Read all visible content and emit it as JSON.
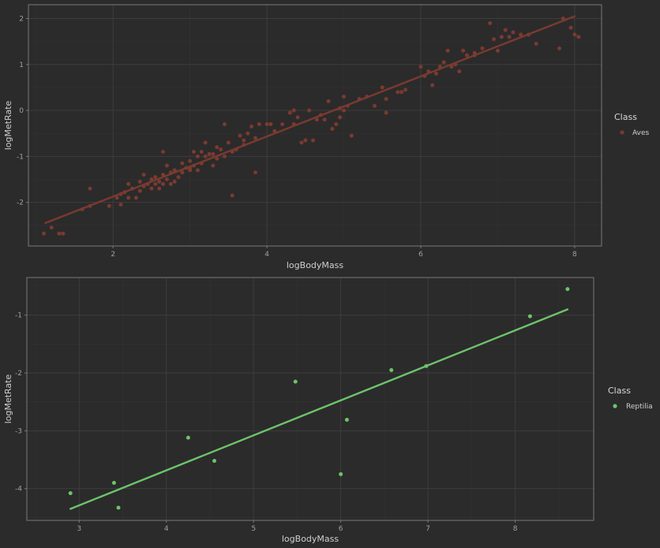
{
  "chart_data": [
    {
      "type": "scatter",
      "xlabel": "logBodyMass",
      "ylabel": "logMetRate",
      "xlim": [
        0.9,
        8.35
      ],
      "ylim": [
        -2.95,
        2.3
      ],
      "xticks": [
        2,
        4,
        6,
        8
      ],
      "yticks": [
        -2,
        -1,
        0,
        1,
        2
      ],
      "legend": {
        "title": "Class",
        "position": "right"
      },
      "grid": true,
      "series": [
        {
          "name": "Aves",
          "color": "#7a3a30",
          "points": [
            [
              1.1,
              -2.68
            ],
            [
              1.2,
              -2.55
            ],
            [
              1.3,
              -2.68
            ],
            [
              1.35,
              -2.68
            ],
            [
              1.6,
              -2.15
            ],
            [
              1.7,
              -1.7
            ],
            [
              1.7,
              -2.08
            ],
            [
              1.95,
              -2.08
            ],
            [
              2.05,
              -1.9
            ],
            [
              2.1,
              -1.82
            ],
            [
              2.1,
              -2.05
            ],
            [
              2.15,
              -1.78
            ],
            [
              2.2,
              -1.6
            ],
            [
              2.25,
              -1.7
            ],
            [
              2.3,
              -1.9
            ],
            [
              2.35,
              -1.75
            ],
            [
              2.35,
              -1.55
            ],
            [
              2.4,
              -1.65
            ],
            [
              2.4,
              -1.4
            ],
            [
              2.45,
              -1.6
            ],
            [
              2.5,
              -1.7
            ],
            [
              2.5,
              -1.5
            ],
            [
              2.55,
              -1.6
            ],
            [
              2.55,
              -1.45
            ],
            [
              2.6,
              -1.7
            ],
            [
              2.6,
              -1.55
            ],
            [
              2.65,
              -1.6
            ],
            [
              2.65,
              -1.4
            ],
            [
              2.7,
              -1.2
            ],
            [
              2.7,
              -1.5
            ],
            [
              2.75,
              -1.35
            ],
            [
              2.75,
              -1.6
            ],
            [
              2.8,
              -1.3
            ],
            [
              2.85,
              -1.45
            ],
            [
              2.9,
              -1.15
            ],
            [
              2.9,
              -1.35
            ],
            [
              2.95,
              -1.25
            ],
            [
              3.0,
              -1.1
            ],
            [
              3.0,
              -1.3
            ],
            [
              3.05,
              -1.2
            ],
            [
              3.1,
              -1.0
            ],
            [
              3.1,
              -1.3
            ],
            [
              3.15,
              -1.15
            ],
            [
              3.2,
              -1.0
            ],
            [
              3.25,
              -0.95
            ],
            [
              3.3,
              -1.2
            ],
            [
              3.35,
              -1.05
            ],
            [
              3.4,
              -0.85
            ],
            [
              3.45,
              -1.0
            ],
            [
              3.5,
              -0.7
            ],
            [
              3.55,
              -0.9
            ],
            [
              3.6,
              -0.85
            ],
            [
              3.65,
              -0.55
            ],
            [
              3.7,
              -0.75
            ],
            [
              3.75,
              -0.5
            ],
            [
              3.8,
              -0.35
            ],
            [
              3.85,
              -0.6
            ],
            [
              3.9,
              -0.3
            ],
            [
              4.0,
              -0.3
            ],
            [
              4.1,
              -0.45
            ],
            [
              4.2,
              -0.3
            ],
            [
              4.3,
              -0.05
            ],
            [
              4.35,
              -0.3
            ],
            [
              4.4,
              -0.15
            ],
            [
              4.5,
              -0.65
            ],
            [
              4.6,
              -0.65
            ],
            [
              4.7,
              -0.1
            ],
            [
              4.75,
              -0.2
            ],
            [
              4.8,
              0.2
            ],
            [
              4.9,
              -0.3
            ],
            [
              4.95,
              -0.15
            ],
            [
              5.0,
              0.3
            ],
            [
              5.05,
              0.1
            ],
            [
              5.1,
              -0.55
            ],
            [
              5.2,
              0.25
            ],
            [
              5.3,
              0.3
            ],
            [
              5.5,
              0.5
            ],
            [
              5.55,
              0.25
            ],
            [
              5.7,
              0.4
            ],
            [
              5.8,
              0.45
            ],
            [
              6.0,
              0.95
            ],
            [
              6.05,
              0.75
            ],
            [
              6.1,
              0.85
            ],
            [
              6.15,
              0.55
            ],
            [
              6.2,
              0.8
            ],
            [
              6.3,
              1.05
            ],
            [
              6.35,
              1.3
            ],
            [
              6.45,
              1.0
            ],
            [
              6.5,
              0.85
            ],
            [
              6.55,
              1.3
            ],
            [
              6.6,
              1.2
            ],
            [
              6.7,
              1.2
            ],
            [
              6.8,
              1.35
            ],
            [
              6.9,
              1.9
            ],
            [
              6.95,
              1.55
            ],
            [
              7.0,
              1.3
            ],
            [
              7.05,
              1.6
            ],
            [
              7.1,
              1.75
            ],
            [
              7.2,
              1.7
            ],
            [
              7.3,
              1.65
            ],
            [
              7.5,
              1.45
            ],
            [
              7.8,
              1.35
            ],
            [
              7.85,
              2.0
            ],
            [
              7.95,
              1.8
            ],
            [
              8.0,
              1.65
            ],
            [
              8.05,
              1.6
            ],
            [
              2.65,
              -0.9
            ],
            [
              3.05,
              -0.9
            ],
            [
              3.2,
              -0.7
            ],
            [
              3.3,
              -0.95
            ],
            [
              3.45,
              -0.3
            ],
            [
              3.55,
              -1.85
            ],
            [
              3.85,
              -1.35
            ],
            [
              4.45,
              -0.7
            ],
            [
              4.85,
              -0.4
            ],
            [
              5.55,
              -0.05
            ],
            [
              5.0,
              0.0
            ],
            [
              6.25,
              0.95
            ],
            [
              2.2,
              -1.9
            ],
            [
              2.8,
              -1.55
            ],
            [
              3.0,
              -1.25
            ],
            [
              3.15,
              -0.9
            ],
            [
              3.35,
              -0.8
            ],
            [
              3.7,
              -0.65
            ],
            [
              4.05,
              -0.3
            ],
            [
              4.35,
              0.0
            ],
            [
              4.55,
              0.0
            ],
            [
              4.65,
              -0.2
            ],
            [
              4.95,
              0.05
            ],
            [
              5.4,
              0.1
            ],
            [
              5.75,
              0.4
            ],
            [
              6.4,
              0.95
            ],
            [
              6.7,
              1.25
            ],
            [
              7.15,
              1.6
            ],
            [
              7.4,
              1.65
            ]
          ],
          "fit": {
            "x1": 1.12,
            "y1": -2.45,
            "x2": 8.0,
            "y2": 2.05
          }
        }
      ]
    },
    {
      "type": "scatter",
      "xlabel": "logBodyMass",
      "ylabel": "logMetRate",
      "xlim": [
        2.4,
        8.9
      ],
      "ylim": [
        -4.55,
        -0.35
      ],
      "xticks": [
        3,
        4,
        5,
        6,
        7,
        8
      ],
      "yticks": [
        -4,
        -3,
        -2,
        -1
      ],
      "legend": {
        "title": "Class",
        "position": "right"
      },
      "grid": true,
      "series": [
        {
          "name": "Reptilia",
          "color": "#6cc46a",
          "points": [
            [
              2.9,
              -4.08
            ],
            [
              3.4,
              -3.9
            ],
            [
              3.45,
              -4.33
            ],
            [
              4.25,
              -3.12
            ],
            [
              4.55,
              -3.52
            ],
            [
              5.48,
              -2.15
            ],
            [
              6.0,
              -3.75
            ],
            [
              6.07,
              -2.81
            ],
            [
              6.58,
              -1.95
            ],
            [
              6.98,
              -1.88
            ],
            [
              8.17,
              -1.02
            ],
            [
              8.6,
              -0.55
            ]
          ],
          "fit": {
            "x1": 2.9,
            "y1": -4.35,
            "x2": 8.6,
            "y2": -0.9
          }
        }
      ]
    }
  ]
}
